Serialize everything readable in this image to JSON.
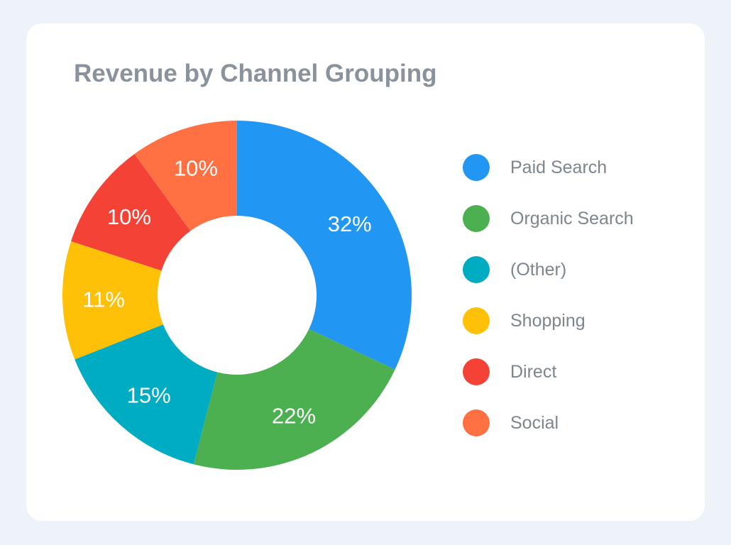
{
  "chart_data": {
    "type": "pie",
    "title": "Revenue by Channel Grouping",
    "donut": true,
    "legend_position": "right",
    "categories": [
      "Paid Search",
      "Organic Search",
      "(Other)",
      "Shopping",
      "Direct",
      "Social"
    ],
    "values": [
      32,
      22,
      15,
      11,
      10,
      10
    ],
    "data_labels": [
      "32%",
      "22%",
      "15%",
      "11%",
      "10%",
      "10%"
    ],
    "colors": [
      "#2196F3",
      "#4CAF50",
      "#00ACC1",
      "#FFC107",
      "#F44336",
      "#FF7043"
    ]
  }
}
